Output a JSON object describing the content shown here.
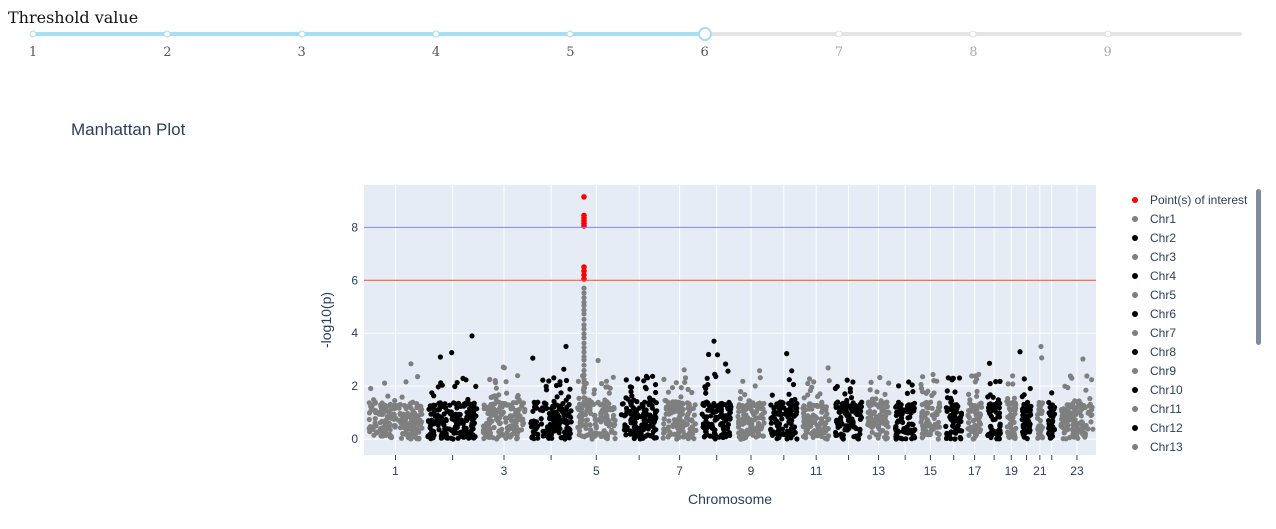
{
  "slider": {
    "title": "Threshold value",
    "marks": [
      "1",
      "2",
      "3",
      "4",
      "5",
      "6",
      "7",
      "8",
      "9"
    ],
    "min": 1,
    "max": 10,
    "value": 6,
    "active_color": "#a8def2",
    "inactive_color": "#e4e4e4"
  },
  "chart_data": {
    "type": "scatter",
    "title": "Manhattan Plot",
    "xlabel": "Chromosome",
    "ylabel": "-log10(p)",
    "ylim": [
      -0.6,
      9.6
    ],
    "y_ticks": [
      "0",
      "2",
      "4",
      "6",
      "8"
    ],
    "x_tick_labels": [
      "1",
      "3",
      "5",
      "7",
      "9",
      "11",
      "13",
      "15",
      "17",
      "19",
      "21",
      "23"
    ],
    "chromosome_order": [
      "1",
      "2",
      "3",
      "4",
      "5",
      "6",
      "7",
      "8",
      "9",
      "10",
      "11",
      "12",
      "13",
      "14",
      "15",
      "16",
      "17",
      "18",
      "19",
      "20",
      "21",
      "22",
      "23"
    ],
    "thresholds": [
      {
        "value": 6,
        "color": "#ff4020"
      },
      {
        "value": 8,
        "color": "#8080ff"
      }
    ],
    "grid": true,
    "legend_position": "right",
    "series": [
      {
        "name": "Point(s) of interest",
        "color": "#ff0000",
        "chromosome": "5",
        "values": [
          9.15,
          8.45,
          8.35,
          8.25,
          8.15,
          8.05,
          6.5,
          6.35,
          6.2,
          6.05
        ]
      },
      {
        "name": "Chr1",
        "color": "#7f7f7f"
      },
      {
        "name": "Chr2",
        "color": "#000000"
      },
      {
        "name": "Chr3",
        "color": "#7f7f7f"
      },
      {
        "name": "Chr4",
        "color": "#000000"
      },
      {
        "name": "Chr5",
        "color": "#7f7f7f"
      },
      {
        "name": "Chr6",
        "color": "#000000"
      },
      {
        "name": "Chr7",
        "color": "#7f7f7f"
      },
      {
        "name": "Chr8",
        "color": "#000000"
      },
      {
        "name": "Chr9",
        "color": "#7f7f7f"
      },
      {
        "name": "Chr10",
        "color": "#000000"
      },
      {
        "name": "Chr11",
        "color": "#7f7f7f"
      },
      {
        "name": "Chr12",
        "color": "#000000"
      },
      {
        "name": "Chr13",
        "color": "#7f7f7f"
      }
    ]
  }
}
